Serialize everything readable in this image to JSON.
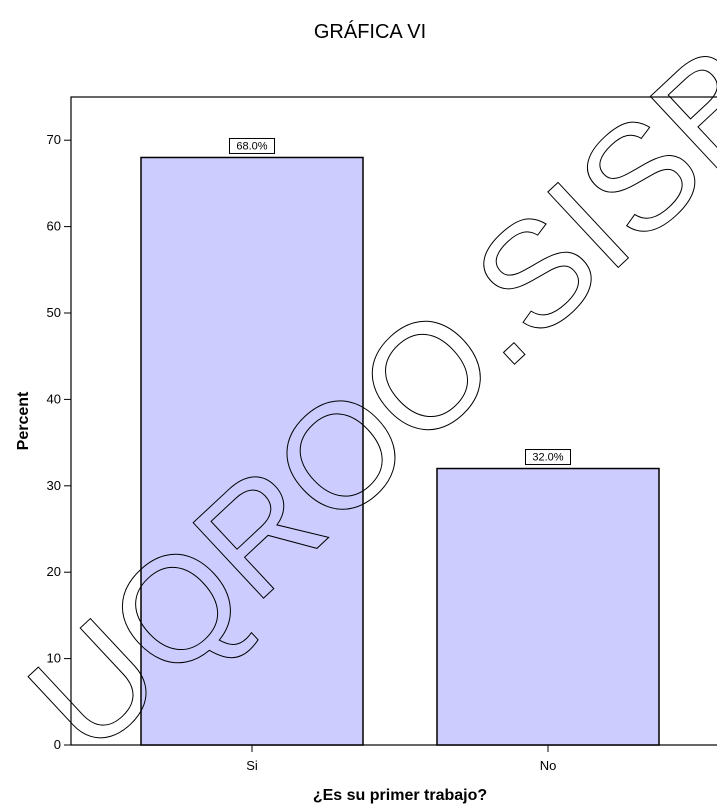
{
  "chart_data": {
    "type": "bar",
    "title": "GRÁFICA VI",
    "xlabel": "¿Es su primer trabajo?",
    "ylabel": "Percent",
    "categories": [
      "Si",
      "No"
    ],
    "values": [
      68.0,
      32.0
    ],
    "data_labels": [
      "68.0%",
      "32.0%"
    ],
    "ylim": [
      0,
      75
    ],
    "yticks": [
      0,
      10,
      20,
      30,
      40,
      50,
      60,
      70
    ],
    "grid": false,
    "bar_color": "#ccccff",
    "bar_outline_color": "#000000"
  },
  "watermark": {
    "text": "UQROO.SISBI.CEDOC"
  }
}
